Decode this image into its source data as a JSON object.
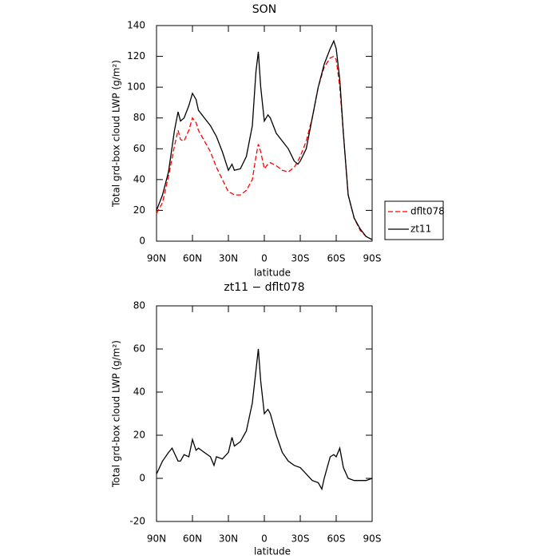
{
  "chart_data": [
    {
      "type": "line",
      "title": "SON",
      "xlabel": "latitude",
      "ylabel": "Total grd-box cloud LWP (g/m²)",
      "x": [
        90,
        85,
        80,
        75,
        72,
        70,
        67,
        63,
        60,
        57,
        55,
        50,
        45,
        40,
        35,
        30,
        27,
        25,
        20,
        15,
        10,
        7,
        5,
        3,
        0,
        -3,
        -5,
        -10,
        -15,
        -20,
        -25,
        -28,
        -30,
        -35,
        -40,
        -45,
        -50,
        -55,
        -58,
        -60,
        -63,
        -66,
        -70,
        -75,
        -80,
        -85,
        -90
      ],
      "series": [
        {
          "name": "dflt078",
          "color": "#ff0000",
          "dashed": true,
          "values": [
            18,
            25,
            42,
            62,
            72,
            66,
            65,
            72,
            80,
            77,
            72,
            65,
            58,
            48,
            40,
            32,
            31,
            30,
            30,
            33,
            40,
            55,
            63,
            58,
            47,
            50,
            51,
            49,
            46,
            45,
            48,
            52,
            55,
            65,
            80,
            100,
            113,
            119,
            120,
            118,
            100,
            70,
            30,
            15,
            7,
            3,
            1
          ]
        },
        {
          "name": "zt11",
          "color": "#000000",
          "dashed": false,
          "values": [
            20,
            30,
            45,
            72,
            84,
            78,
            80,
            88,
            96,
            92,
            85,
            80,
            75,
            68,
            58,
            46,
            50,
            46,
            47,
            55,
            75,
            110,
            123,
            100,
            78,
            82,
            80,
            70,
            65,
            60,
            52,
            50,
            52,
            60,
            80,
            100,
            115,
            125,
            130,
            125,
            105,
            70,
            30,
            15,
            8,
            3,
            1
          ]
        }
      ],
      "xlim": [
        90,
        -90
      ],
      "xticks": [
        {
          "value": 90,
          "label": "90N"
        },
        {
          "value": 60,
          "label": "60N"
        },
        {
          "value": 30,
          "label": "30N"
        },
        0,
        {
          "value": -30,
          "label": "30S"
        },
        {
          "value": -60,
          "label": "60S"
        },
        {
          "value": -90,
          "label": "90S"
        }
      ],
      "ylim": [
        0,
        140
      ],
      "yticks": [
        0,
        20,
        40,
        60,
        80,
        100,
        120,
        140
      ],
      "legend": "right"
    },
    {
      "type": "line",
      "title": "zt11 − dflt078",
      "xlabel": "latitude",
      "ylabel": "Total grd-box cloud LWP (g/m²)",
      "x": [
        90,
        85,
        80,
        77,
        72,
        70,
        67,
        63,
        60,
        57,
        55,
        50,
        45,
        42,
        40,
        35,
        30,
        27,
        25,
        20,
        15,
        10,
        7,
        5,
        3,
        0,
        -3,
        -5,
        -10,
        -15,
        -20,
        -25,
        -30,
        -35,
        -40,
        -45,
        -48,
        -50,
        -55,
        -58,
        -60,
        -63,
        -66,
        -70,
        -75,
        -80,
        -85,
        -90
      ],
      "series": [
        {
          "color": "#000000",
          "dashed": false,
          "values": [
            2,
            8,
            12,
            14,
            8,
            8,
            11,
            10,
            18,
            13,
            14,
            12,
            10,
            6,
            10,
            9,
            12,
            19,
            15,
            17,
            22,
            35,
            50,
            60,
            45,
            30,
            32,
            30,
            20,
            12,
            8,
            6,
            5,
            2,
            -1,
            -2,
            -5,
            0,
            10,
            11,
            10,
            14,
            5,
            0,
            -1,
            -1,
            -1,
            0
          ]
        }
      ],
      "xlim": [
        90,
        -90
      ],
      "xticks": [
        {
          "value": 90,
          "label": "90N"
        },
        {
          "value": 60,
          "label": "60N"
        },
        {
          "value": 30,
          "label": "30N"
        },
        0,
        {
          "value": -30,
          "label": "30S"
        },
        {
          "value": -60,
          "label": "60S"
        },
        {
          "value": -90,
          "label": "90S"
        }
      ],
      "ylim": [
        -20,
        80
      ],
      "yticks": [
        -20,
        0,
        20,
        40,
        60,
        80
      ]
    }
  ]
}
